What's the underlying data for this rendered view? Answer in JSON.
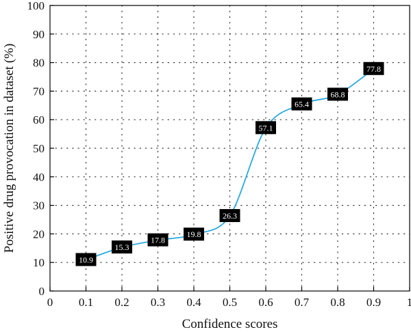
{
  "chart_data": {
    "type": "line",
    "title": "",
    "xlabel": "Confidence scores",
    "ylabel": "Positive drug provocation in dataset (%)",
    "xlim": [
      0,
      1
    ],
    "ylim": [
      0,
      100
    ],
    "x_ticks": [
      "0",
      "0.1",
      "0.2",
      "0.3",
      "0.4",
      "0.5",
      "0.6",
      "0.7",
      "0.8",
      "0.9",
      "1"
    ],
    "y_ticks": [
      "0",
      "10",
      "20",
      "30",
      "40",
      "50",
      "60",
      "70",
      "80",
      "90",
      "100"
    ],
    "grid": true,
    "legend": "none",
    "series": [
      {
        "x": [
          0.1,
          0.2,
          0.3,
          0.4,
          0.5,
          0.6,
          0.7,
          0.8,
          0.9
        ],
        "values": [
          10.9,
          15.3,
          17.8,
          19.8,
          26.3,
          57.1,
          65.4,
          68.8,
          77.8
        ],
        "labels": [
          "10.9",
          "15.3",
          "17.8",
          "19.8",
          "26.3",
          "57.1",
          "65.4",
          "68.8",
          "77.8"
        ],
        "color": "#29a9e0",
        "marker_color": "#1a8fd0"
      }
    ],
    "colors": {
      "line": "#29a9e0",
      "marker": "#1a8fd0",
      "label_bg": "#000000",
      "label_text": "#ffffff",
      "grid": "#333333"
    }
  }
}
